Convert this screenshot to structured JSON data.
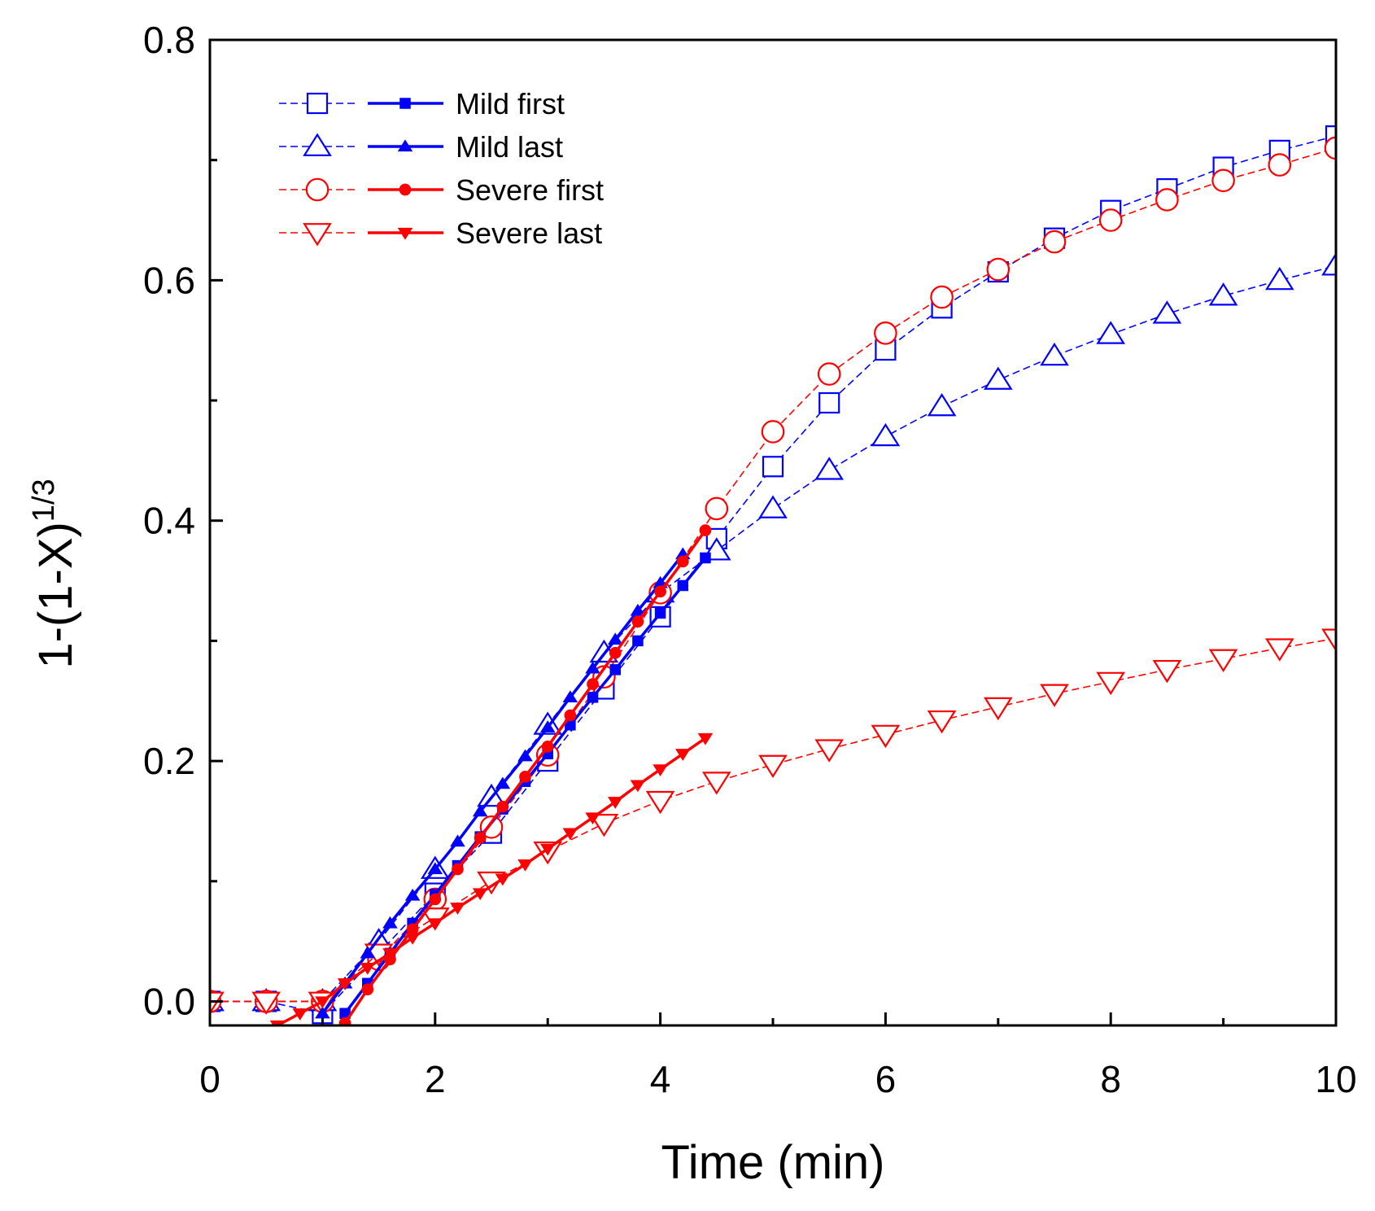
{
  "chart_data": {
    "type": "line",
    "xlabel": "Time (min)",
    "ylabel": {
      "main": "1-(1-X)",
      "superscript": "1/3"
    },
    "xlim": [
      0,
      10
    ],
    "ylim": [
      -0.02,
      0.8
    ],
    "x_ticks": [
      0,
      2,
      4,
      6,
      8,
      10
    ],
    "x_tick_labels": [
      "0",
      "2",
      "4",
      "6",
      "8",
      "10"
    ],
    "y_ticks": [
      0.0,
      0.2,
      0.4,
      0.6,
      0.8
    ],
    "y_tick_labels": [
      "0.0",
      "0.2",
      "0.4",
      "0.6",
      "0.8"
    ],
    "grid": false,
    "legend_position": "top-left",
    "legend": [
      {
        "name": "Mild first",
        "color": "#0000ff",
        "open_marker": "square",
        "filled_marker": "square"
      },
      {
        "name": "Mild last",
        "color": "#0000ff",
        "open_marker": "triangle-up",
        "filled_marker": "triangle-up"
      },
      {
        "name": "Severe first",
        "color": "#ff0000",
        "open_marker": "circle",
        "filled_marker": "circle"
      },
      {
        "name": "Severe last",
        "color": "#ff0000",
        "open_marker": "triangle-down",
        "filled_marker": "triangle-down"
      }
    ],
    "series": [
      {
        "name": "Mild first",
        "style": "open",
        "color": "#0000ff",
        "marker": "square",
        "x": [
          0,
          0.5,
          1.0,
          1.5,
          2.0,
          2.5,
          3.0,
          3.5,
          4.0,
          4.5,
          5.0,
          5.5,
          6.0,
          6.5,
          7.0,
          7.5,
          8.0,
          8.5,
          9.0,
          9.5,
          10.0
        ],
        "y": [
          0.0,
          0.0,
          -0.01,
          0.04,
          0.09,
          0.14,
          0.2,
          0.26,
          0.32,
          0.385,
          0.445,
          0.498,
          0.542,
          0.577,
          0.607,
          0.635,
          0.658,
          0.676,
          0.694,
          0.708,
          0.72
        ]
      },
      {
        "name": "Mild last",
        "style": "open",
        "color": "#0000ff",
        "marker": "triangle-up",
        "x": [
          0,
          0.5,
          1.0,
          1.5,
          2.0,
          2.5,
          3.0,
          3.5,
          4.0,
          4.5,
          5.0,
          5.5,
          6.0,
          6.5,
          7.0,
          7.5,
          8.0,
          8.5,
          9.0,
          9.5,
          10.0
        ],
        "y": [
          0.0,
          0.0,
          0.0,
          0.05,
          0.11,
          0.17,
          0.23,
          0.29,
          0.34,
          0.375,
          0.41,
          0.442,
          0.47,
          0.495,
          0.517,
          0.537,
          0.555,
          0.572,
          0.587,
          0.6,
          0.612
        ]
      },
      {
        "name": "Severe first",
        "style": "open",
        "color": "#ff0000",
        "marker": "circle",
        "x": [
          0,
          0.5,
          1.0,
          1.5,
          2.0,
          2.5,
          3.0,
          3.5,
          4.0,
          4.5,
          5.0,
          5.5,
          6.0,
          6.5,
          7.0,
          7.5,
          8.0,
          8.5,
          9.0,
          9.5,
          10.0
        ],
        "y": [
          0.0,
          0.0,
          0.0,
          0.035,
          0.085,
          0.145,
          0.205,
          0.27,
          0.34,
          0.41,
          0.474,
          0.522,
          0.556,
          0.586,
          0.609,
          0.632,
          0.65,
          0.667,
          0.683,
          0.696,
          0.71
        ]
      },
      {
        "name": "Severe last",
        "style": "open",
        "color": "#ff0000",
        "marker": "triangle-down",
        "x": [
          0,
          0.5,
          1.0,
          1.5,
          2.0,
          2.5,
          3.0,
          3.5,
          4.0,
          4.5,
          5.0,
          5.5,
          6.0,
          6.5,
          7.0,
          7.5,
          8.0,
          8.5,
          9.0,
          9.5,
          10.0
        ],
        "y": [
          0.0,
          0.0,
          0.0,
          0.04,
          0.07,
          0.1,
          0.125,
          0.148,
          0.167,
          0.183,
          0.197,
          0.21,
          0.222,
          0.234,
          0.245,
          0.256,
          0.266,
          0.276,
          0.285,
          0.294,
          0.302
        ]
      },
      {
        "name": "Mild first",
        "style": "filled",
        "color": "#0000ff",
        "marker": "square",
        "x": [
          1.2,
          1.4,
          1.6,
          1.8,
          2.0,
          2.2,
          2.4,
          2.6,
          2.8,
          3.0,
          3.2,
          3.4,
          3.6,
          3.8,
          4.0,
          4.2,
          4.4
        ],
        "y": [
          -0.01,
          0.015,
          0.04,
          0.065,
          0.089,
          0.113,
          0.137,
          0.16,
          0.183,
          0.206,
          0.23,
          0.253,
          0.276,
          0.3,
          0.323,
          0.346,
          0.369
        ]
      },
      {
        "name": "Mild last",
        "style": "filled",
        "color": "#0000ff",
        "marker": "triangle-up",
        "x": [
          1.0,
          1.2,
          1.4,
          1.6,
          1.8,
          2.0,
          2.2,
          2.4,
          2.6,
          2.8,
          3.0,
          3.2,
          3.4,
          3.6,
          3.8,
          4.0,
          4.2
        ],
        "y": [
          -0.01,
          0.015,
          0.04,
          0.065,
          0.088,
          0.11,
          0.133,
          0.158,
          0.181,
          0.204,
          0.228,
          0.253,
          0.277,
          0.301,
          0.325,
          0.348,
          0.372
        ]
      },
      {
        "name": "Severe first",
        "style": "filled",
        "color": "#ff0000",
        "marker": "circle",
        "x": [
          1.2,
          1.4,
          1.6,
          1.8,
          2.0,
          2.2,
          2.4,
          2.6,
          2.8,
          3.0,
          3.2,
          3.4,
          3.6,
          3.8,
          4.0,
          4.2,
          4.4
        ],
        "y": [
          -0.018,
          0.01,
          0.035,
          0.06,
          0.085,
          0.11,
          0.136,
          0.162,
          0.187,
          0.212,
          0.238,
          0.264,
          0.29,
          0.316,
          0.341,
          0.366,
          0.392
        ]
      },
      {
        "name": "Severe last",
        "style": "filled",
        "color": "#ff0000",
        "marker": "triangle-down",
        "x": [
          0.6,
          0.8,
          1.0,
          1.2,
          1.4,
          1.6,
          1.8,
          2.0,
          2.2,
          2.4,
          2.6,
          2.8,
          3.0,
          3.2,
          3.4,
          3.6,
          3.8,
          4.0,
          4.2,
          4.4
        ],
        "y": [
          -0.02,
          -0.01,
          0.0,
          0.015,
          0.028,
          0.04,
          0.053,
          0.065,
          0.078,
          0.09,
          0.102,
          0.114,
          0.127,
          0.14,
          0.153,
          0.166,
          0.18,
          0.193,
          0.206,
          0.219
        ]
      }
    ]
  }
}
